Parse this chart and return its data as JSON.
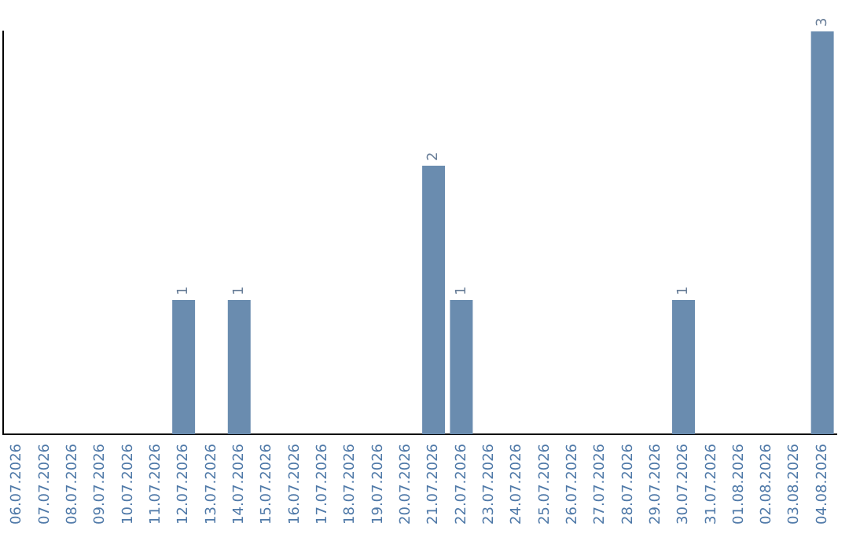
{
  "chart_data": {
    "type": "bar",
    "categories": [
      "06.07.2026",
      "07.07.2026",
      "08.07.2026",
      "09.07.2026",
      "10.07.2026",
      "11.07.2026",
      "12.07.2026",
      "13.07.2026",
      "14.07.2026",
      "15.07.2026",
      "16.07.2026",
      "17.07.2026",
      "18.07.2026",
      "19.07.2026",
      "20.07.2026",
      "21.07.2026",
      "22.07.2026",
      "23.07.2026",
      "24.07.2026",
      "25.07.2026",
      "26.07.2026",
      "27.07.2026",
      "28.07.2026",
      "29.07.2026",
      "30.07.2026",
      "31.07.2026",
      "01.08.2026",
      "02.08.2026",
      "03.08.2026",
      "04.08.2026"
    ],
    "values": [
      0,
      0,
      0,
      0,
      0,
      0,
      1,
      0,
      1,
      0,
      0,
      0,
      0,
      0,
      0,
      2,
      1,
      0,
      0,
      0,
      0,
      0,
      0,
      0,
      1,
      0,
      0,
      0,
      0,
      3
    ],
    "value_labels": [
      null,
      null,
      null,
      null,
      null,
      null,
      "1",
      null,
      "1",
      null,
      null,
      null,
      null,
      null,
      null,
      "2",
      "1",
      null,
      null,
      null,
      null,
      null,
      null,
      null,
      "1",
      null,
      null,
      null,
      null,
      "3"
    ],
    "color": "#6a8caf",
    "ylim": [
      0,
      3
    ],
    "tick_labels": "x",
    "grid": false,
    "legend": false
  }
}
